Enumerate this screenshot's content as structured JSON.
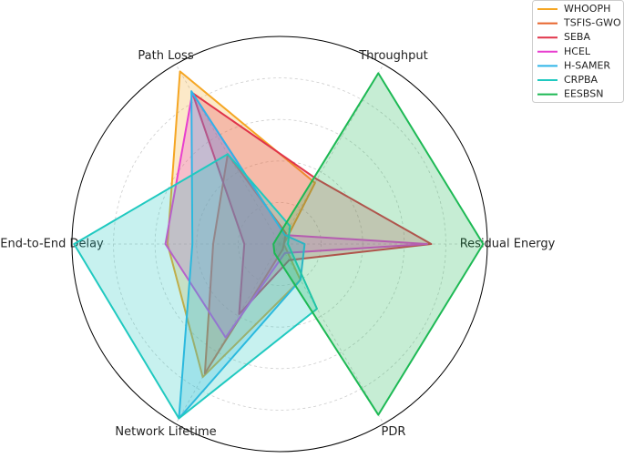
{
  "chart_data": {
    "type": "radar",
    "categories": [
      "Residual Energy",
      "Throughput",
      "Path Loss",
      "End-to-End Delay",
      "Network Lifetime",
      "PDR"
    ],
    "ylim": [
      0,
      1
    ],
    "yticks": [
      0.2,
      0.4,
      0.6,
      0.8
    ],
    "grid": true,
    "legend": "upper right",
    "series": [
      {
        "name": "WHOOPH",
        "color": "#f5a623",
        "values": [
          0.02,
          0.34,
          0.96,
          0.54,
          0.74,
          0.2
        ]
      },
      {
        "name": "TSFIS-GWO",
        "color": "#e8642c",
        "values": [
          0.02,
          0.06,
          0.5,
          0.32,
          0.72,
          0.03
        ]
      },
      {
        "name": "SEBA",
        "color": "#e0344a",
        "values": [
          0.73,
          0.36,
          0.84,
          0.17,
          0.39,
          0.09
        ]
      },
      {
        "name": "HCEL",
        "color": "#e83fcf",
        "values": [
          0.71,
          0.05,
          0.84,
          0.55,
          0.52,
          0.05
        ]
      },
      {
        "name": "H-SAMER",
        "color": "#2fb5e8",
        "values": [
          0.12,
          0.05,
          0.85,
          0.42,
          0.97,
          0.2
        ]
      },
      {
        "name": "CRPBA",
        "color": "#20c9c0",
        "values": [
          0.04,
          0.1,
          0.5,
          0.99,
          0.97,
          0.36
        ]
      },
      {
        "name": "EESBSN",
        "color": "#1db954",
        "values": [
          0.98,
          0.95,
          0.03,
          0.03,
          0.05,
          0.95
        ]
      }
    ]
  }
}
